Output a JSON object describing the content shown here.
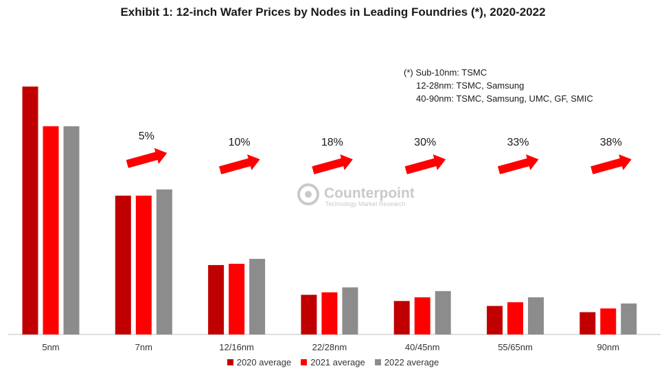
{
  "chart_data": {
    "type": "bar",
    "title": "Exhibit 1: 12-inch Wafer Prices by Nodes in Leading Foundries (*), 2020-2022",
    "categories": [
      "5nm",
      "7nm",
      "12/16nm",
      "22/28nm",
      "40/45nm",
      "55/65nm",
      "90nm"
    ],
    "series": [
      {
        "name": "2020 average",
        "color": "#c00000",
        "values": [
          100,
          56,
          28,
          16,
          13.5,
          11.5,
          9
        ]
      },
      {
        "name": "2021 average",
        "color": "#ff0000",
        "values": [
          84,
          56,
          28.5,
          17,
          15,
          13,
          10.5
        ]
      },
      {
        "name": "2022 average",
        "color": "#8c8c8c",
        "values": [
          84,
          58.5,
          30.5,
          19,
          17.5,
          15,
          12.5
        ]
      }
    ],
    "ylim": [
      0,
      100
    ],
    "grid": false,
    "legend_position": "bottom",
    "annotations": [
      "",
      "5%",
      "10%",
      "18%",
      "30%",
      "33%",
      "38%"
    ],
    "arrow_color": "#ff0000"
  },
  "footnote": [
    "(*) Sub-10nm: TSMC",
    "     12-28nm: TSMC, Samsung",
    "     40-90nm: TSMC, Samsung, UMC, GF, SMIC"
  ],
  "watermark": {
    "name": "Counterpoint",
    "tagline": "Technology Market Research"
  }
}
